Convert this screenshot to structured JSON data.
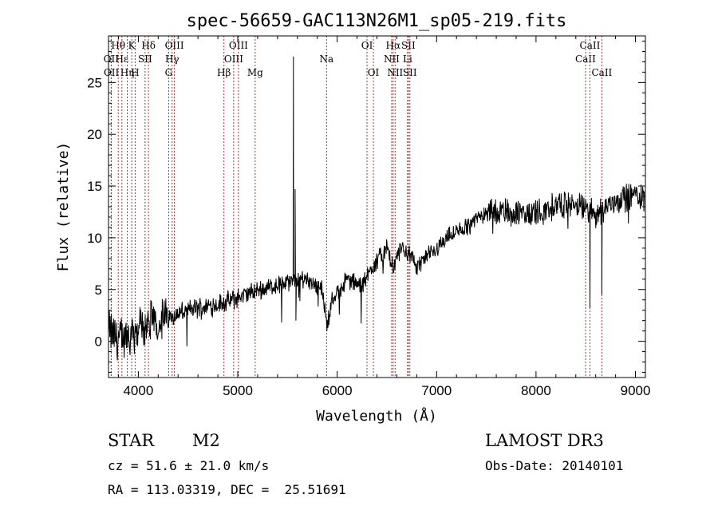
{
  "chart_data": {
    "type": "line",
    "title": "spec-56659-GAC113N26M1_sp05-219.fits",
    "xlabel": "Wavelength (Å)",
    "ylabel": "Flux (relative)",
    "xlim": [
      3700,
      9100
    ],
    "ylim": [
      -3.5,
      29.5
    ],
    "xticks": [
      4000,
      5000,
      6000,
      7000,
      8000,
      9000
    ],
    "yticks": [
      0,
      5,
      10,
      15,
      20,
      25
    ],
    "line_color": "#000000",
    "marker_color": "#b03030",
    "spectrum_anchors": [
      [
        3700,
        1.0
      ],
      [
        3800,
        0.2
      ],
      [
        3900,
        0.6
      ],
      [
        4000,
        1.4
      ],
      [
        4100,
        1.6
      ],
      [
        4300,
        2.3
      ],
      [
        4500,
        3.0
      ],
      [
        4700,
        3.4
      ],
      [
        4900,
        3.8
      ],
      [
        5100,
        4.6
      ],
      [
        5300,
        5.2
      ],
      [
        5500,
        5.7
      ],
      [
        5700,
        6.1
      ],
      [
        5850,
        5.0
      ],
      [
        5900,
        1.5
      ],
      [
        5950,
        4.0
      ],
      [
        6100,
        6.0
      ],
      [
        6250,
        5.3
      ],
      [
        6350,
        7.2
      ],
      [
        6500,
        9.0
      ],
      [
        6560,
        7.0
      ],
      [
        6650,
        9.2
      ],
      [
        6800,
        7.3
      ],
      [
        6950,
        8.5
      ],
      [
        7100,
        10.0
      ],
      [
        7300,
        11.0
      ],
      [
        7500,
        12.6
      ],
      [
        7700,
        12.5
      ],
      [
        7900,
        12.2
      ],
      [
        8100,
        12.8
      ],
      [
        8300,
        13.4
      ],
      [
        8500,
        12.8
      ],
      [
        8600,
        12.3
      ],
      [
        8800,
        13.6
      ],
      [
        9000,
        14.2
      ],
      [
        9100,
        13.8
      ]
    ],
    "spikes": [
      {
        "x": 5577,
        "y": 14.7
      },
      {
        "x": 5585,
        "y": 2.0
      },
      {
        "x": 5560,
        "y": 27.5
      },
      {
        "x": 8542,
        "y": 3.2
      },
      {
        "x": 8662,
        "y": 4.5
      }
    ],
    "line_markers": [
      {
        "label": "Hδ",
        "x": 4102,
        "row": 1
      },
      {
        "label": "Hγ",
        "x": 4340,
        "row": 3
      },
      {
        "label": "OIII",
        "x": 4363,
        "row": 2
      },
      {
        "label": "Hβ",
        "x": 4861,
        "row": 4
      },
      {
        "label": "OIII",
        "x": 4959,
        "row": 3
      },
      {
        "label": "OIII",
        "x": 5007,
        "row": 2
      },
      {
        "label": "Mg",
        "x": 5175,
        "row": 4
      },
      {
        "label": "Na",
        "x": 5893,
        "row": 3
      },
      {
        "label": "OI",
        "x": 6300,
        "row": 2
      },
      {
        "label": "OI",
        "x": 6364,
        "row": 4
      },
      {
        "label": "NII",
        "x": 6548,
        "row": 3
      },
      {
        "label": "Hα",
        "x": 6563,
        "row": 2
      },
      {
        "label": "NII",
        "x": 6583,
        "row": 4
      },
      {
        "label": "Li",
        "x": 6708,
        "row": 3
      },
      {
        "label": "SII",
        "x": 6716,
        "row": 2
      },
      {
        "label": "SII",
        "x": 6731,
        "row": 4
      },
      {
        "label": "CaII",
        "x": 8498,
        "row": 3
      },
      {
        "label": "CaII",
        "x": 8542,
        "row": 2
      },
      {
        "label": "CaII",
        "x": 8662,
        "row": 4
      },
      {
        "label": "Hθ",
        "x": 3798,
        "row": 2
      },
      {
        "label": "OII",
        "x": 3727,
        "row": 3
      },
      {
        "label": "OII",
        "x": 3729,
        "row": 4
      },
      {
        "label": "Hε",
        "x": 3835,
        "row": 3
      },
      {
        "label": "Hη",
        "x": 3889,
        "row": 4
      },
      {
        "label": "K",
        "x": 3934,
        "row": 2
      },
      {
        "label": "SII",
        "x": 4068,
        "row": 3
      },
      {
        "label": "H",
        "x": 3968,
        "row": 4
      },
      {
        "label": "G",
        "x": 4305,
        "row": 4
      }
    ]
  },
  "info": {
    "object_class": "STAR",
    "subclass": "M2",
    "survey": "LAMOST DR3",
    "cz": "cz = 51.6 ± 21.0 km/s",
    "obs_date": "Obs-Date: 20140101",
    "coords": "RA = 113.03319, DEC =  25.51691"
  }
}
